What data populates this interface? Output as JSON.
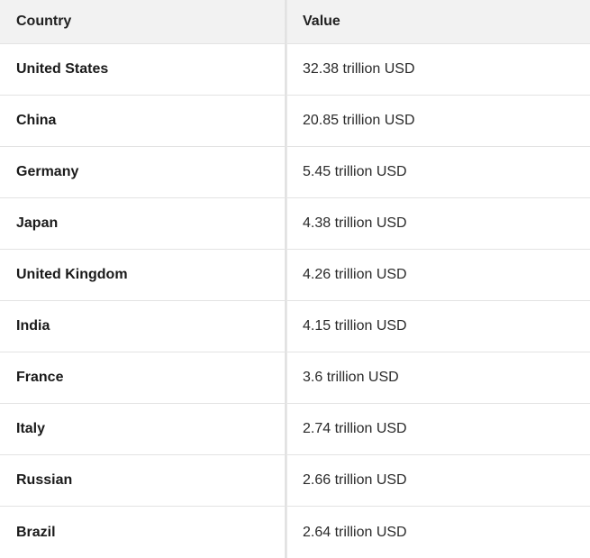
{
  "table": {
    "headers": {
      "country": "Country",
      "value": "Value"
    },
    "rows": [
      {
        "country": "United States",
        "value": "32.38 trillion USD"
      },
      {
        "country": "China",
        "value": "20.85 trillion USD"
      },
      {
        "country": "Germany",
        "value": "5.45 trillion USD"
      },
      {
        "country": "Japan",
        "value": "4.38 trillion USD"
      },
      {
        "country": "United Kingdom",
        "value": "4.26 trillion USD"
      },
      {
        "country": "India",
        "value": "4.15 trillion USD"
      },
      {
        "country": "France",
        "value": "3.6 trillion USD"
      },
      {
        "country": "Italy",
        "value": "2.74 trillion USD"
      },
      {
        "country": "Russian",
        "value": "2.66 trillion USD"
      },
      {
        "country": "Brazil",
        "value": "2.64 trillion USD"
      }
    ]
  },
  "colors": {
    "header_background": "#f2f2f2",
    "row_border": "#e3e3e3",
    "text": "#1a1a1a"
  }
}
